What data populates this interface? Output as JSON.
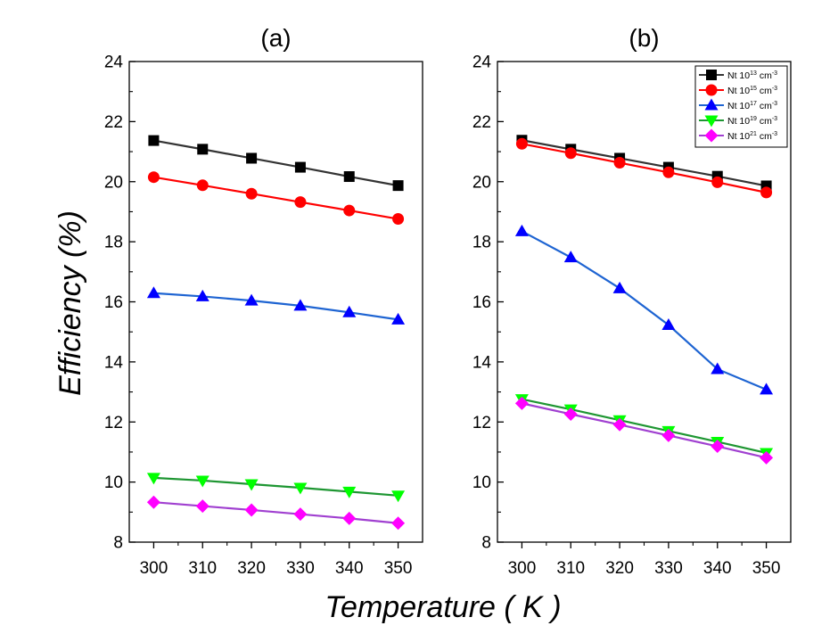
{
  "chart_data": [
    {
      "type": "line",
      "title": "(a)",
      "xlabel": "Temperature ( K )",
      "ylabel": "Efficiency (%)",
      "x": [
        300,
        310,
        320,
        330,
        340,
        350
      ],
      "xlim": [
        295,
        355
      ],
      "ylim": [
        8,
        24
      ],
      "xticks": [
        300,
        310,
        320,
        330,
        340,
        350
      ],
      "yticks": [
        8,
        10,
        12,
        14,
        16,
        18,
        20,
        22,
        24
      ],
      "legend": false,
      "series": [
        {
          "color": "#000000",
          "line_color": "#333333",
          "marker": "square",
          "values": [
            21.37,
            21.08,
            20.78,
            20.48,
            20.17,
            19.87
          ]
        },
        {
          "color": "#ff0000",
          "line_color": "#ff0000",
          "marker": "circle",
          "values": [
            20.15,
            19.88,
            19.6,
            19.32,
            19.04,
            18.76
          ]
        },
        {
          "color": "#0000ff",
          "line_color": "#1e64d2",
          "marker": "triangle-up",
          "values": [
            16.29,
            16.18,
            16.04,
            15.87,
            15.65,
            15.41
          ]
        },
        {
          "color": "#00ff00",
          "line_color": "#1e9632",
          "marker": "triangle-down",
          "values": [
            10.14,
            10.05,
            9.93,
            9.81,
            9.68,
            9.55
          ]
        },
        {
          "color": "#ff00ff",
          "line_color": "#a040d0",
          "marker": "diamond",
          "values": [
            9.33,
            9.2,
            9.07,
            8.93,
            8.79,
            8.63
          ]
        }
      ]
    },
    {
      "type": "line",
      "title": "(b)",
      "xlabel": "Temperature ( K )",
      "ylabel": "Efficiency (%)",
      "x": [
        300,
        310,
        320,
        330,
        340,
        350
      ],
      "xlim": [
        295,
        355
      ],
      "ylim": [
        8,
        24
      ],
      "xticks": [
        300,
        310,
        320,
        330,
        340,
        350
      ],
      "yticks": [
        8,
        10,
        12,
        14,
        16,
        18,
        20,
        22,
        24
      ],
      "legend": "top-right",
      "series": [
        {
          "name": "Nt 10¹³ cm⁻³",
          "color": "#000000",
          "line_color": "#333333",
          "marker": "square",
          "values": [
            21.38,
            21.08,
            20.78,
            20.48,
            20.18,
            19.86
          ]
        },
        {
          "name": "Nt 10¹⁵ cm⁻³",
          "color": "#ff0000",
          "line_color": "#ff0000",
          "marker": "circle",
          "values": [
            21.26,
            20.95,
            20.63,
            20.31,
            19.98,
            19.64
          ]
        },
        {
          "name": "Nt 10¹⁷ cm⁻³",
          "color": "#0000ff",
          "line_color": "#1e64d2",
          "marker": "triangle-up",
          "values": [
            18.35,
            17.48,
            16.45,
            15.23,
            13.76,
            13.08
          ]
        },
        {
          "name": "Nt 10¹⁹ cm⁻³",
          "color": "#00ff00",
          "line_color": "#1e9632",
          "marker": "triangle-down",
          "values": [
            12.76,
            12.42,
            12.06,
            11.7,
            11.34,
            10.97
          ]
        },
        {
          "name": "Nt 10²¹ cm⁻³",
          "color": "#ff00ff",
          "line_color": "#a040d0",
          "marker": "diamond",
          "values": [
            12.62,
            12.26,
            11.91,
            11.55,
            11.19,
            10.81
          ]
        }
      ],
      "legend_entries": [
        {
          "prefix": "Nt 10",
          "exp": "13",
          "unit": " cm",
          "uexp": "-3"
        },
        {
          "prefix": "Nt 10",
          "exp": "15",
          "unit": " cm",
          "uexp": "-3"
        },
        {
          "prefix": "Nt 10",
          "exp": "17",
          "unit": " cm",
          "uexp": "-3"
        },
        {
          "prefix": "Nt 10",
          "exp": "19",
          "unit": " cm",
          "uexp": "-3"
        },
        {
          "prefix": "Nt 10",
          "exp": "21",
          "unit": " cm",
          "uexp": "-3"
        }
      ]
    }
  ],
  "labels": {
    "x_axis_title": "Temperature ( K )",
    "y_axis_title": "Efficiency (%)"
  }
}
